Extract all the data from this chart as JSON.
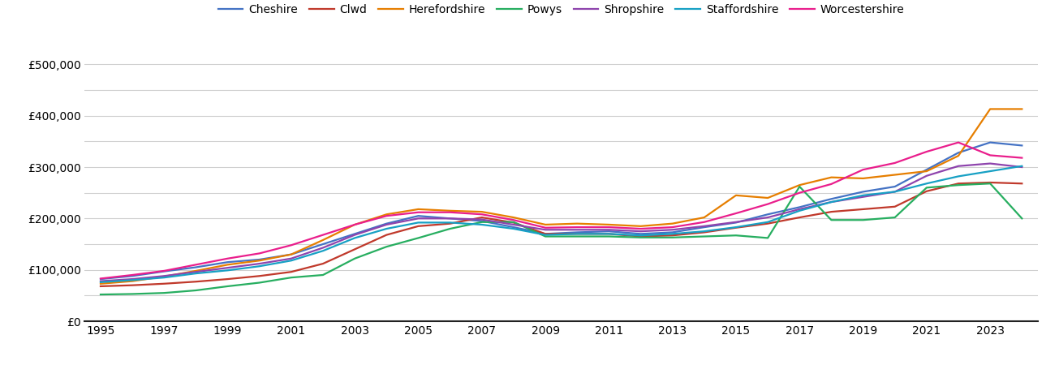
{
  "years": [
    1995,
    1996,
    1997,
    1998,
    1999,
    2000,
    2001,
    2002,
    2003,
    2004,
    2005,
    2006,
    2007,
    2008,
    2009,
    2010,
    2011,
    2012,
    2013,
    2014,
    2015,
    2016,
    2017,
    2018,
    2019,
    2020,
    2021,
    2022,
    2023,
    2024
  ],
  "series": {
    "Cheshire": [
      82000,
      88000,
      97000,
      105000,
      115000,
      120000,
      130000,
      150000,
      170000,
      190000,
      205000,
      200000,
      195000,
      183000,
      170000,
      173000,
      175000,
      170000,
      173000,
      183000,
      192000,
      208000,
      222000,
      238000,
      252000,
      262000,
      295000,
      328000,
      348000,
      342000
    ],
    "Clwd": [
      68000,
      70000,
      73000,
      77000,
      82000,
      88000,
      96000,
      112000,
      140000,
      168000,
      185000,
      190000,
      202000,
      192000,
      170000,
      170000,
      170000,
      165000,
      167000,
      173000,
      182000,
      190000,
      202000,
      213000,
      218000,
      223000,
      253000,
      268000,
      270000,
      268000
    ],
    "Herefordshire": [
      73000,
      78000,
      87000,
      98000,
      110000,
      118000,
      130000,
      158000,
      188000,
      208000,
      218000,
      215000,
      213000,
      202000,
      188000,
      190000,
      188000,
      185000,
      190000,
      202000,
      245000,
      240000,
      265000,
      280000,
      278000,
      285000,
      292000,
      322000,
      413000,
      413000
    ],
    "Powys": [
      52000,
      53000,
      55000,
      60000,
      68000,
      75000,
      85000,
      90000,
      122000,
      145000,
      162000,
      180000,
      193000,
      193000,
      165000,
      165000,
      165000,
      163000,
      163000,
      165000,
      167000,
      162000,
      262000,
      197000,
      197000,
      202000,
      260000,
      265000,
      268000,
      200000
    ],
    "Shropshire": [
      78000,
      82000,
      88000,
      96000,
      104000,
      112000,
      122000,
      143000,
      168000,
      188000,
      200000,
      200000,
      198000,
      188000,
      178000,
      178000,
      178000,
      175000,
      178000,
      185000,
      193000,
      202000,
      218000,
      232000,
      242000,
      252000,
      283000,
      302000,
      307000,
      300000
    ],
    "Staffordshire": [
      76000,
      80000,
      85000,
      93000,
      99000,
      107000,
      118000,
      137000,
      162000,
      180000,
      192000,
      192000,
      188000,
      180000,
      168000,
      170000,
      170000,
      167000,
      170000,
      175000,
      183000,
      193000,
      215000,
      232000,
      245000,
      252000,
      268000,
      282000,
      292000,
      302000
    ],
    "Worcestershire": [
      83000,
      90000,
      98000,
      110000,
      122000,
      132000,
      148000,
      168000,
      188000,
      205000,
      212000,
      212000,
      208000,
      197000,
      182000,
      183000,
      183000,
      180000,
      183000,
      193000,
      210000,
      228000,
      250000,
      267000,
      295000,
      308000,
      330000,
      348000,
      323000,
      318000
    ]
  },
  "colors": {
    "Cheshire": "#4472c4",
    "Clwd": "#c0392b",
    "Herefordshire": "#e67e00",
    "Powys": "#27ae60",
    "Shropshire": "#8e44ad",
    "Staffordshire": "#17a0c4",
    "Worcestershire": "#e91e8c"
  },
  "ylim": [
    0,
    540000
  ],
  "yticks": [
    0,
    50000,
    100000,
    150000,
    200000,
    250000,
    300000,
    350000,
    400000,
    450000,
    500000
  ],
  "ytick_labels": [
    "£0",
    "",
    "£100,000",
    "",
    "£200,000",
    "",
    "£300,000",
    "",
    "£400,000",
    "",
    "£500,000"
  ],
  "xlim_min": 1994.5,
  "xlim_max": 2024.5,
  "xticks": [
    1995,
    1997,
    1999,
    2001,
    2003,
    2005,
    2007,
    2009,
    2011,
    2013,
    2015,
    2017,
    2019,
    2021,
    2023
  ],
  "background_color": "#ffffff",
  "grid_color": "#d0d0d0",
  "line_width": 1.6,
  "legend_fontsize": 10,
  "tick_fontsize": 10
}
